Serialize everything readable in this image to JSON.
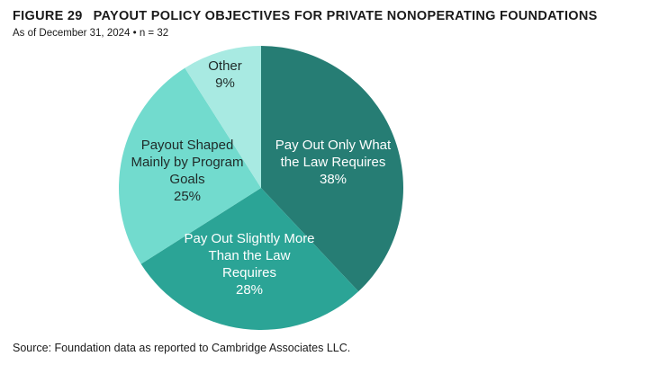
{
  "header": {
    "figure_label": "FIGURE 29",
    "title": "PAYOUT POLICY OBJECTIVES FOR PRIVATE NONOPERATING FOUNDATIONS",
    "subtitle": "As of December 31, 2024 • n = 32"
  },
  "chart_data": {
    "type": "pie",
    "title": "Payout Policy Objectives for Private Nonoperating Foundations",
    "as_of": "December 31, 2024",
    "n": 32,
    "start_angle_deg": 0,
    "direction": "clockwise",
    "legend": "none",
    "slices": [
      {
        "label": "Pay Out Only What the Law Requires",
        "value_pct": 38,
        "pct_label": "38%",
        "color": "#267d74",
        "text_color": "#ffffff"
      },
      {
        "label": "Pay Out Slightly More Than the Law Requires",
        "value_pct": 28,
        "pct_label": "28%",
        "color": "#2ba496",
        "text_color": "#ffffff"
      },
      {
        "label": "Payout Shaped Mainly by Program Goals",
        "value_pct": 25,
        "pct_label": "25%",
        "color": "#72dbce",
        "text_color": "#1f2a28"
      },
      {
        "label": "Other",
        "value_pct": 9,
        "pct_label": "9%",
        "color": "#a8eae2",
        "text_color": "#1f2a28"
      }
    ]
  },
  "footer": {
    "source": "Source: Foundation data as reported to Cambridge Associates LLC."
  }
}
